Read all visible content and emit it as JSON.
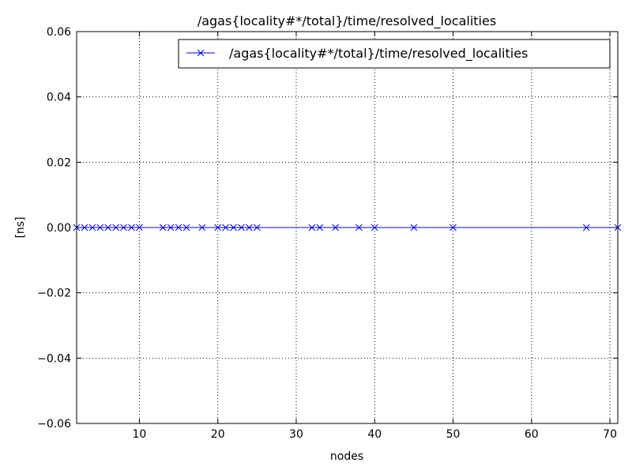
{
  "chart_data": {
    "type": "line",
    "title": "/agas{locality#*/total}/time/resolved_localities",
    "xlabel": "nodes",
    "ylabel": "[ns]",
    "xlim": [
      2,
      71
    ],
    "ylim": [
      -0.06,
      0.06
    ],
    "xticks": [
      10,
      20,
      30,
      40,
      50,
      60,
      70
    ],
    "xtick_labels": [
      "10",
      "20",
      "30",
      "40",
      "50",
      "60",
      "70"
    ],
    "yticks": [
      -0.06,
      -0.04,
      -0.02,
      0.0,
      0.02,
      0.04,
      0.06
    ],
    "ytick_labels": [
      "−0.06",
      "−0.04",
      "−0.02",
      "0.00",
      "0.02",
      "0.04",
      "0.06"
    ],
    "grid": true,
    "legend_position": "top-right",
    "series": [
      {
        "name": "/agas{locality#*/total}/time/resolved_localities",
        "color": "#0000ff",
        "marker": "x",
        "x": [
          2,
          3,
          4,
          5,
          6,
          7,
          8,
          9,
          10,
          13,
          14,
          15,
          16,
          18,
          20,
          21,
          22,
          23,
          24,
          25,
          32,
          33,
          35,
          38,
          40,
          45,
          50,
          67,
          71
        ],
        "y": [
          0,
          0,
          0,
          0,
          0,
          0,
          0,
          0,
          0,
          0,
          0,
          0,
          0,
          0,
          0,
          0,
          0,
          0,
          0,
          0,
          0,
          0,
          0,
          0,
          0,
          0,
          0,
          0,
          0
        ]
      }
    ]
  }
}
